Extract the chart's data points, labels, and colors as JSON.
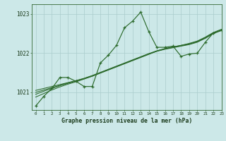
{
  "title": "Graphe pression niveau de la mer (hPa)",
  "bg_color": "#cce8e8",
  "grid_color": "#aacccc",
  "line_color": "#2d6b2d",
  "xlim": [
    -0.5,
    23
  ],
  "ylim": [
    1020.55,
    1023.25
  ],
  "yticks": [
    1021,
    1022,
    1023
  ],
  "xticks": [
    0,
    1,
    2,
    3,
    4,
    5,
    6,
    7,
    8,
    9,
    10,
    11,
    12,
    13,
    14,
    15,
    16,
    17,
    18,
    19,
    20,
    21,
    22,
    23
  ],
  "series_main": [
    1020.65,
    1020.9,
    1021.1,
    1021.38,
    1021.38,
    1021.28,
    1021.15,
    1021.15,
    1021.75,
    1021.95,
    1022.2,
    1022.65,
    1022.82,
    1023.05,
    1022.55,
    1022.15,
    1022.15,
    1022.18,
    1021.92,
    1021.98,
    1022.0,
    1022.28,
    1022.52,
    1022.58
  ],
  "series_trend1": [
    1021.05,
    1021.1,
    1021.15,
    1021.2,
    1021.25,
    1021.3,
    1021.35,
    1021.42,
    1021.5,
    1021.58,
    1021.66,
    1021.74,
    1021.82,
    1021.9,
    1021.98,
    1022.05,
    1022.1,
    1022.14,
    1022.18,
    1022.22,
    1022.28,
    1022.38,
    1022.5,
    1022.58
  ],
  "series_trend2": [
    1021.0,
    1021.06,
    1021.12,
    1021.18,
    1021.24,
    1021.3,
    1021.36,
    1021.43,
    1021.51,
    1021.59,
    1021.67,
    1021.75,
    1021.83,
    1021.91,
    1021.99,
    1022.06,
    1022.11,
    1022.15,
    1022.19,
    1022.23,
    1022.29,
    1022.39,
    1022.51,
    1022.59
  ],
  "series_trend3": [
    1020.95,
    1021.03,
    1021.1,
    1021.17,
    1021.23,
    1021.29,
    1021.35,
    1021.42,
    1021.5,
    1021.58,
    1021.66,
    1021.74,
    1021.82,
    1021.9,
    1021.98,
    1022.06,
    1022.12,
    1022.16,
    1022.2,
    1022.24,
    1022.3,
    1022.4,
    1022.52,
    1022.6
  ],
  "series_trend4": [
    1020.88,
    1020.97,
    1021.06,
    1021.14,
    1021.21,
    1021.27,
    1021.34,
    1021.41,
    1021.49,
    1021.57,
    1021.65,
    1021.73,
    1021.81,
    1021.89,
    1021.97,
    1022.05,
    1022.11,
    1022.16,
    1022.2,
    1022.25,
    1022.31,
    1022.41,
    1022.53,
    1022.61
  ]
}
